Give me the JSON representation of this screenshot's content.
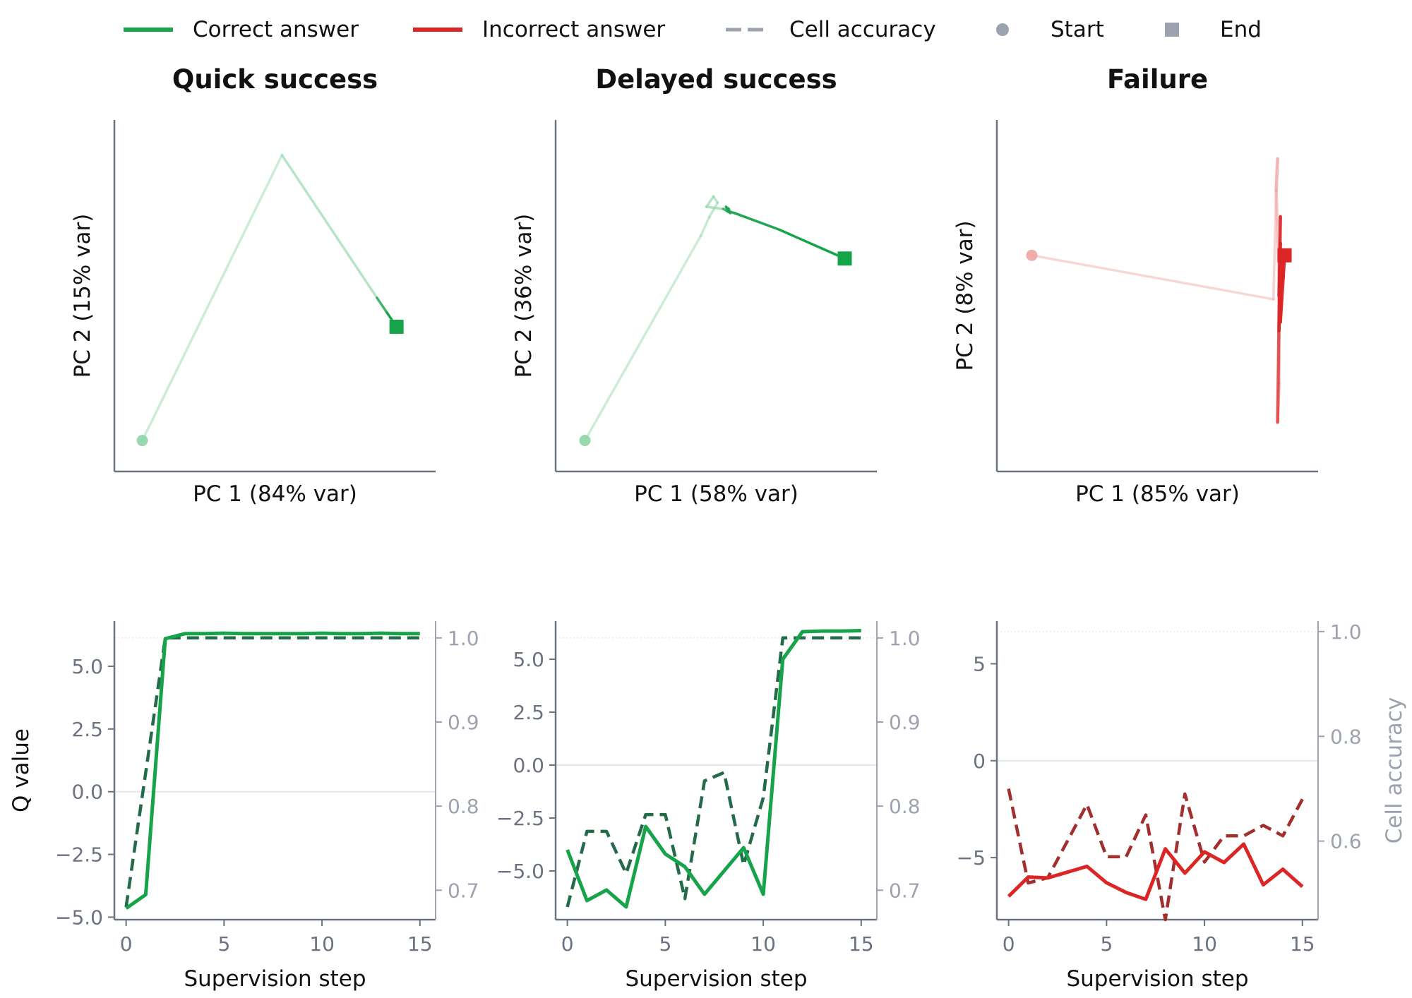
{
  "colors": {
    "correct": "#16a34a",
    "correct_light": "#8fd4a6",
    "correct_dash": "#256b4a",
    "incorrect": "#dc2626",
    "incorrect_light": "#f0a3a3",
    "incorrect_dash": "#a32e2e",
    "cell": "#9ca3af",
    "axis": "#6b7280",
    "tick_text": "#6b7280",
    "grid": "#e5e7eb"
  },
  "legend": [
    {
      "label": "Correct answer",
      "kind": "line",
      "color": "#16a34a"
    },
    {
      "label": "Incorrect answer",
      "kind": "line",
      "color": "#dc2626"
    },
    {
      "label": "Cell accuracy",
      "kind": "dash",
      "color": "#9ca3af"
    },
    {
      "label": "Start",
      "kind": "circle",
      "color": "#9ca3af"
    },
    {
      "label": "End",
      "kind": "square",
      "color": "#9ca3af"
    }
  ],
  "chart_data": [
    {
      "type": "line",
      "title": "Quick success",
      "outcome": "correct",
      "xlabel": "PC 1 (84% var)",
      "ylabel": "PC 2 (15% var)",
      "xlim": [
        -1.1,
        1.2
      ],
      "ylim": [
        -0.7,
        1.0
      ],
      "x": [
        -0.9,
        0.1,
        0.78,
        0.85,
        0.92
      ],
      "y": [
        -0.55,
        0.83,
        0.14,
        0.07,
        0.0
      ],
      "start": [
        -0.9,
        -0.55
      ],
      "end": [
        0.92,
        0.0
      ]
    },
    {
      "type": "line",
      "title": "Delayed success",
      "outcome": "correct",
      "xlabel": "PC 1 (58% var)",
      "ylabel": "PC 2 (36% var)",
      "xlim": [
        -1.1,
        1.2
      ],
      "ylim": [
        -0.7,
        1.0
      ],
      "x": [
        -0.89,
        -0.06,
        0.0,
        0.06,
        0.03,
        -0.02,
        0.1,
        0.15,
        0.14,
        0.12,
        0.13,
        0.18,
        0.5,
        0.97
      ],
      "y": [
        -0.55,
        0.44,
        0.53,
        0.6,
        0.63,
        0.58,
        0.57,
        0.55,
        0.57,
        0.58,
        0.56,
        0.55,
        0.47,
        0.33
      ],
      "start": [
        -0.89,
        -0.55
      ],
      "end": [
        0.97,
        0.33
      ]
    },
    {
      "type": "line",
      "title": "Failure",
      "outcome": "incorrect",
      "xlabel": "PC 1 (85% var)",
      "ylabel": "PC 2 (8% var)",
      "xlim": [
        -1.2,
        1.1
      ],
      "ylim": [
        -1.0,
        1.0
      ],
      "x": [
        -0.95,
        0.78,
        0.8,
        0.81,
        0.8,
        0.82,
        0.82,
        0.81,
        0.83,
        0.82,
        0.83,
        0.82,
        0.84,
        0.83,
        0.85,
        0.86
      ],
      "y": [
        0.23,
        -0.02,
        0.6,
        0.78,
        0.6,
        0.1,
        -0.5,
        -0.72,
        0.45,
        0.0,
        0.3,
        -0.2,
        0.2,
        -0.15,
        0.1,
        0.23
      ],
      "start": [
        -0.95,
        0.23
      ],
      "end": [
        0.86,
        0.23
      ]
    },
    {
      "type": "line",
      "outcome": "correct",
      "xlabel": "Supervision step",
      "ylabel": "Q value",
      "y2label": "",
      "xlim": [
        -0.6,
        15.8
      ],
      "ylim": [
        -5.1,
        6.8
      ],
      "y2lim": [
        0.665,
        1.02
      ],
      "xticks": [
        "0",
        "5",
        "10",
        "15"
      ],
      "yticks": [
        "5.0",
        "2.5",
        "0.0",
        "−2.5",
        "−5.0"
      ],
      "y2ticks": [
        "1.0",
        "0.9",
        "0.8",
        "0.7"
      ],
      "x": [
        0,
        1,
        2,
        3,
        4,
        5,
        6,
        7,
        8,
        9,
        10,
        11,
        12,
        13,
        14,
        15
      ],
      "q_value": [
        -4.65,
        -4.1,
        6.1,
        6.3,
        6.3,
        6.32,
        6.3,
        6.3,
        6.3,
        6.3,
        6.32,
        6.3,
        6.3,
        6.32,
        6.3,
        6.3
      ],
      "cell_accuracy": [
        0.68,
        0.84,
        1.0,
        1.0,
        1.0,
        1.0,
        1.0,
        1.0,
        1.0,
        1.0,
        1.0,
        1.0,
        1.0,
        1.0,
        1.0,
        1.0
      ]
    },
    {
      "type": "line",
      "outcome": "correct",
      "xlabel": "Supervision step",
      "ylabel": "",
      "y2label": "",
      "xlim": [
        -0.6,
        15.8
      ],
      "ylim": [
        -7.3,
        6.8
      ],
      "y2lim": [
        0.665,
        1.02
      ],
      "xticks": [
        "0",
        "5",
        "10",
        "15"
      ],
      "yticks": [
        "5.0",
        "2.5",
        "0.0",
        "−2.5",
        "−5.0"
      ],
      "y2ticks": [
        "1.0",
        "0.9",
        "0.8",
        "0.7"
      ],
      "x": [
        0,
        1,
        2,
        3,
        4,
        5,
        6,
        7,
        8,
        9,
        10,
        11,
        12,
        13,
        14,
        15
      ],
      "q_value": [
        -4.0,
        -6.4,
        -5.9,
        -6.7,
        -2.9,
        -4.2,
        -4.8,
        -6.1,
        -5.0,
        -3.9,
        -6.1,
        5.0,
        6.3,
        6.33,
        6.33,
        6.35
      ],
      "cell_accuracy": [
        0.68,
        0.77,
        0.77,
        0.72,
        0.79,
        0.79,
        0.69,
        0.83,
        0.84,
        0.73,
        0.81,
        1.0,
        1.0,
        1.0,
        1.0,
        1.0
      ]
    },
    {
      "type": "line",
      "outcome": "incorrect",
      "xlabel": "Supervision step",
      "ylabel": "",
      "y2label": "Cell accuracy",
      "xlim": [
        -0.6,
        15.8
      ],
      "ylim": [
        -8.2,
        7.2
      ],
      "y2lim": [
        0.45,
        1.02
      ],
      "xticks": [
        "0",
        "5",
        "10",
        "15"
      ],
      "yticks": [
        "5",
        "0",
        "−5"
      ],
      "y2ticks": [
        "1.0",
        "0.8",
        "0.6"
      ],
      "x": [
        0,
        1,
        2,
        3,
        4,
        5,
        6,
        7,
        8,
        9,
        10,
        11,
        12,
        13,
        14,
        15
      ],
      "q_value": [
        -7.0,
        -6.0,
        -6.05,
        -5.75,
        -5.45,
        -6.3,
        -6.8,
        -7.15,
        -4.55,
        -5.8,
        -4.7,
        -5.25,
        -4.3,
        -6.4,
        -5.6,
        -6.5
      ],
      "cell_accuracy": [
        0.7,
        0.52,
        0.53,
        0.6,
        0.67,
        0.57,
        0.57,
        0.65,
        0.45,
        0.69,
        0.56,
        0.61,
        0.61,
        0.63,
        0.61,
        0.68
      ]
    }
  ]
}
